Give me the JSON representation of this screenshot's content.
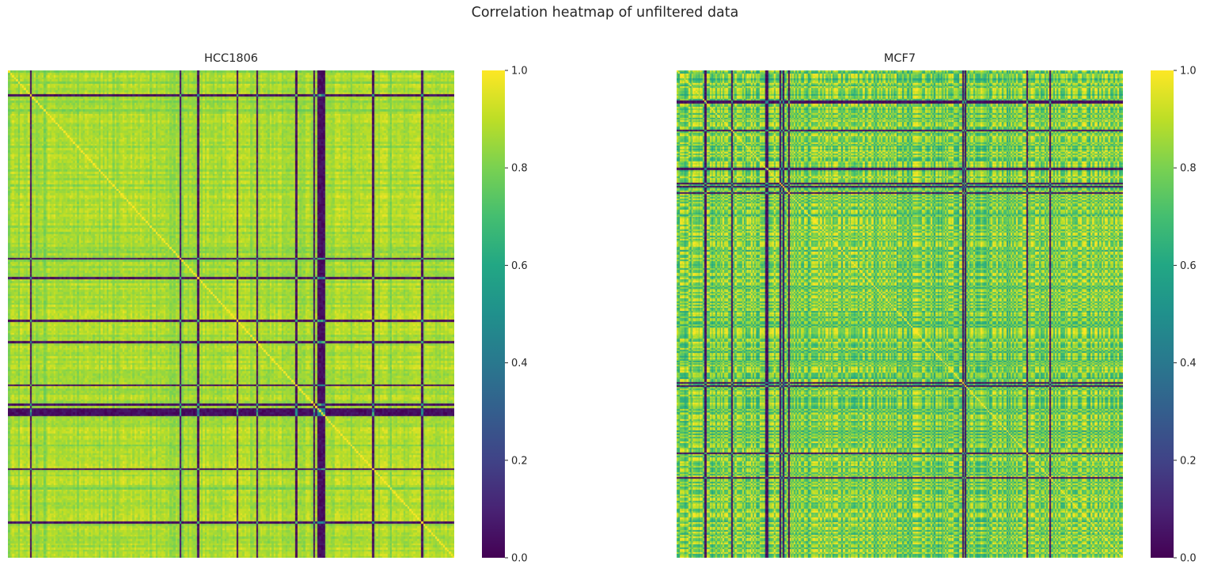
{
  "figure": {
    "title": "Correlation heatmap of unfiltered data"
  },
  "chart_data": [
    {
      "type": "heatmap",
      "title": "HCC1806",
      "xlabel": "",
      "ylabel": "",
      "colormap": "viridis",
      "value_range": [
        0.0,
        1.0
      ],
      "colorbar_ticks": [
        "0.0",
        "0.2",
        "0.4",
        "0.6",
        "0.8",
        "1.0"
      ],
      "matrix_size": 227,
      "diagonal_value": 1.0,
      "typical_offdiagonal_range": [
        0.7,
        0.95
      ],
      "low_correlation_indices": [
        11,
        87,
        96,
        116,
        126,
        146,
        155,
        157,
        158,
        159,
        160,
        185,
        210
      ],
      "tick_labels_shown": false,
      "grid": false
    },
    {
      "type": "heatmap",
      "title": "MCF7",
      "xlabel": "",
      "ylabel": "",
      "colormap": "viridis",
      "value_range": [
        0.0,
        1.0
      ],
      "colorbar_ticks": [
        "0.0",
        "0.2",
        "0.4",
        "0.6",
        "0.8",
        "1.0"
      ],
      "matrix_size": 313,
      "diagonal_value": 1.0,
      "typical_offdiagonal_range": [
        0.55,
        0.95
      ],
      "low_correlation_indices": [
        20,
        19,
        38,
        62,
        63,
        72,
        74,
        78,
        200,
        202,
        245,
        261
      ],
      "tick_labels_shown": false,
      "grid": false
    }
  ]
}
